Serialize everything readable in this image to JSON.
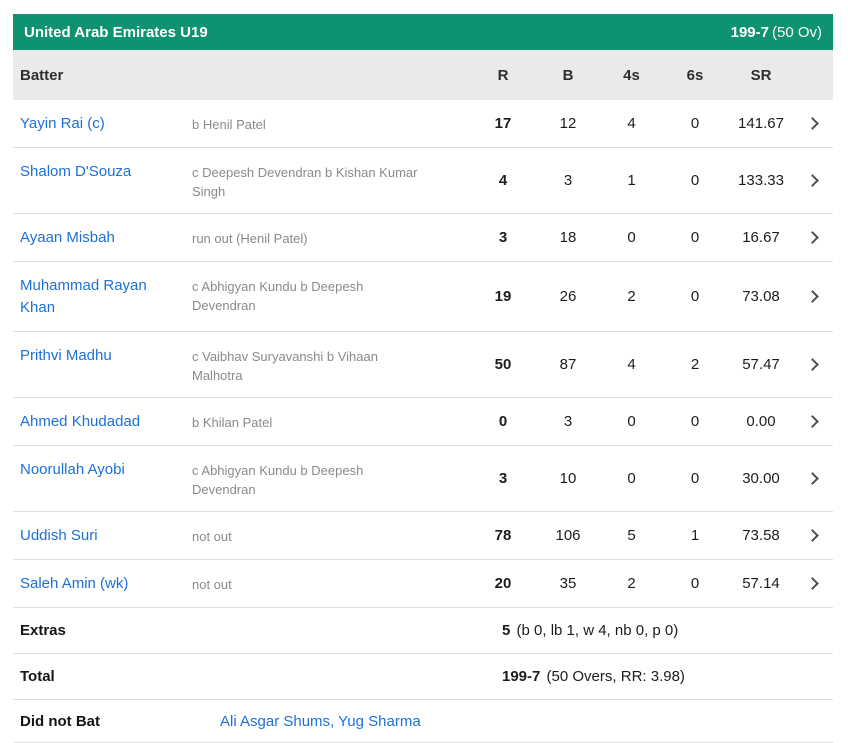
{
  "header": {
    "team": "United Arab Emirates U19",
    "score": "199-7",
    "overs": "(50 Ov)"
  },
  "columns": {
    "batter": "Batter",
    "r": "R",
    "b": "B",
    "fours": "4s",
    "sixes": "6s",
    "sr": "SR"
  },
  "batters": [
    {
      "name": "Yayin Rai (c)",
      "dismissal": "b Henil Patel",
      "r": "17",
      "b": "12",
      "fours": "4",
      "sixes": "0",
      "sr": "141.67"
    },
    {
      "name": "Shalom D'Souza",
      "dismissal": "c Deepesh Devendran b Kishan Kumar Singh",
      "r": "4",
      "b": "3",
      "fours": "1",
      "sixes": "0",
      "sr": "133.33"
    },
    {
      "name": "Ayaan Misbah",
      "dismissal": "run out (Henil Patel)",
      "r": "3",
      "b": "18",
      "fours": "0",
      "sixes": "0",
      "sr": "16.67"
    },
    {
      "name": "Muhammad Rayan Khan",
      "dismissal": "c Abhigyan Kundu b Deepesh Devendran",
      "r": "19",
      "b": "26",
      "fours": "2",
      "sixes": "0",
      "sr": "73.08"
    },
    {
      "name": "Prithvi Madhu",
      "dismissal": "c Vaibhav Suryavanshi b Vihaan Malhotra",
      "r": "50",
      "b": "87",
      "fours": "4",
      "sixes": "2",
      "sr": "57.47"
    },
    {
      "name": "Ahmed Khudadad",
      "dismissal": "b Khilan Patel",
      "r": "0",
      "b": "3",
      "fours": "0",
      "sixes": "0",
      "sr": "0.00"
    },
    {
      "name": "Noorullah Ayobi",
      "dismissal": "c Abhigyan Kundu b Deepesh Devendran",
      "r": "3",
      "b": "10",
      "fours": "0",
      "sixes": "0",
      "sr": "30.00"
    },
    {
      "name": "Uddish Suri",
      "dismissal": "not out",
      "r": "78",
      "b": "106",
      "fours": "5",
      "sixes": "1",
      "sr": "73.58"
    },
    {
      "name": "Saleh Amin (wk)",
      "dismissal": "not out",
      "r": "20",
      "b": "35",
      "fours": "2",
      "sixes": "0",
      "sr": "57.14"
    }
  ],
  "extras": {
    "label": "Extras",
    "runs": "5",
    "detail": "(b 0, lb 1, w 4, nb 0, p 0)"
  },
  "total": {
    "label": "Total",
    "score": "199-7",
    "detail": "(50 Overs, RR: 3.98)"
  },
  "did_not_bat": {
    "label": "Did not Bat",
    "players": "Ali Asgar Shums, Yug Sharma"
  },
  "colors": {
    "accent_green": "#0e9271",
    "link_blue": "#1d70d8",
    "header_gray": "#eaeaea"
  }
}
